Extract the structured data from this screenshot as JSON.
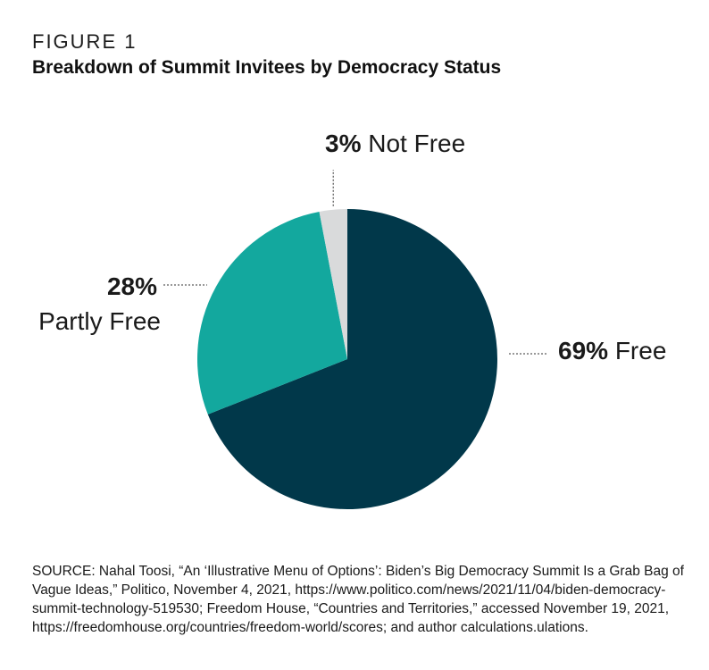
{
  "figure_label": "FIGURE 1",
  "title": "Breakdown of Summit Invitees by Democracy Status",
  "chart_data": {
    "type": "pie",
    "title": "Breakdown of Summit Invitees by Democracy Status",
    "slices": [
      {
        "label": "Free",
        "value_label": "69%",
        "value": 69,
        "color": "#01384a"
      },
      {
        "label": "Partly Free",
        "value_label": "28%",
        "value": 28,
        "color": "#13a89e"
      },
      {
        "label": "Not Free",
        "value_label": "3%",
        "value": 3,
        "color": "#d9dadb"
      }
    ],
    "start": "12 o'clock",
    "direction": "clockwise"
  },
  "source": "SOURCE: Nahal Toosi, “An ‘Illustrative Menu of Options’: Biden’s Big Democracy Summit Is a Grab Bag of Vague Ideas,” Politico, November 4, 2021, https://www.politico.com/news/2021/11/04/biden-democracy-summit-technology-519530; Freedom House, “Countries and Territories,” accessed November 19, 2021, https://freedomhouse.org/countries/freedom-world/scores; and author calculations.ulations."
}
